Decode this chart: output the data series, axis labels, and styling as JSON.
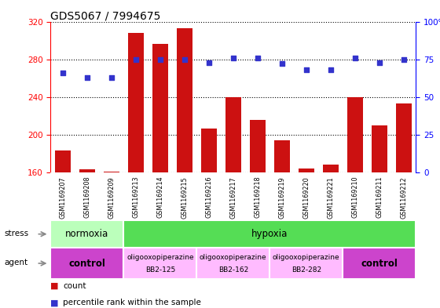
{
  "title": "GDS5067 / 7994675",
  "samples": [
    "GSM1169207",
    "GSM1169208",
    "GSM1169209",
    "GSM1169213",
    "GSM1169214",
    "GSM1169215",
    "GSM1169216",
    "GSM1169217",
    "GSM1169218",
    "GSM1169219",
    "GSM1169220",
    "GSM1169221",
    "GSM1169210",
    "GSM1169211",
    "GSM1169212"
  ],
  "counts": [
    183,
    163,
    161,
    308,
    296,
    313,
    207,
    240,
    216,
    194,
    164,
    168,
    240,
    210,
    233
  ],
  "percentile_ranks": [
    66,
    63,
    63,
    75,
    75,
    75,
    73,
    76,
    76,
    72,
    68,
    68,
    76,
    73,
    75
  ],
  "ylim_left": [
    160,
    320
  ],
  "ylim_right": [
    0,
    100
  ],
  "yticks_left": [
    160,
    200,
    240,
    280,
    320
  ],
  "yticks_right": [
    0,
    25,
    50,
    75,
    100
  ],
  "bar_color": "#cc1111",
  "dot_color": "#3333cc",
  "stress_row": [
    {
      "label": "normoxia",
      "start": 0,
      "end": 3,
      "color": "#bbffbb"
    },
    {
      "label": "hypoxia",
      "start": 3,
      "end": 15,
      "color": "#55dd55"
    }
  ],
  "agent_row": [
    {
      "label": "control",
      "start": 0,
      "end": 3,
      "color": "#cc44cc",
      "text_lines": [
        "control"
      ],
      "bold": true
    },
    {
      "label": "oligooxopiperazine\nBB2-125",
      "start": 3,
      "end": 6,
      "color": "#ffbbff",
      "text_lines": [
        "oligooxopiperazine",
        "BB2-125"
      ],
      "bold": false
    },
    {
      "label": "oligooxopiperazine\nBB2-162",
      "start": 6,
      "end": 9,
      "color": "#ffbbff",
      "text_lines": [
        "oligooxopiperazine",
        "BB2-162"
      ],
      "bold": false
    },
    {
      "label": "oligooxopiperazine\nBB2-282",
      "start": 9,
      "end": 12,
      "color": "#ffbbff",
      "text_lines": [
        "oligooxopiperazine",
        "BB2-282"
      ],
      "bold": false
    },
    {
      "label": "control",
      "start": 12,
      "end": 15,
      "color": "#cc44cc",
      "text_lines": [
        "control"
      ],
      "bold": true
    }
  ],
  "legend_items": [
    {
      "color": "#cc1111",
      "label": "count"
    },
    {
      "color": "#3333cc",
      "label": "percentile rank within the sample"
    }
  ],
  "sample_bg_color": "#cccccc",
  "left_label_color": "#888888"
}
